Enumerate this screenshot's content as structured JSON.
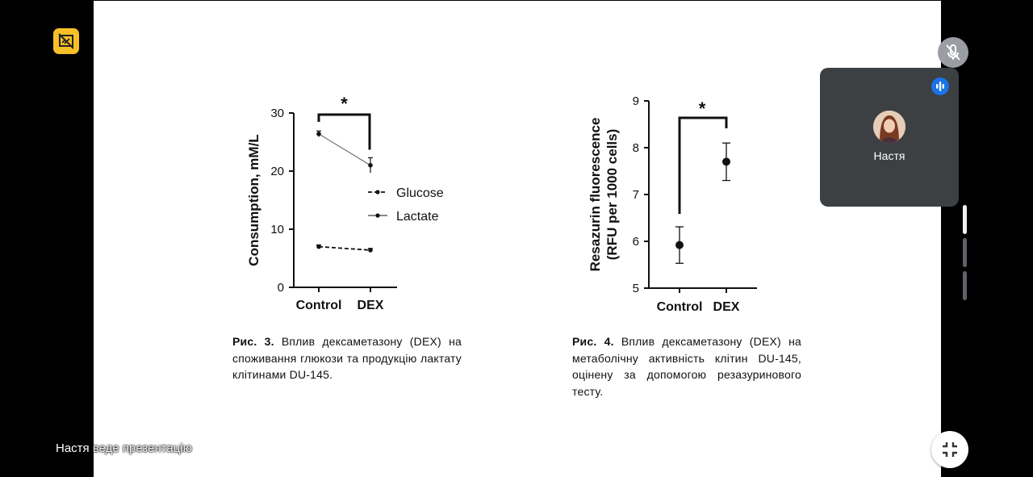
{
  "slide": {
    "fig3": {
      "caption_label": "Рис. 3.",
      "caption_text": "Вплив дексаметазону (DEX) на споживання глюкози та продукцію лактату клітинами DU-145."
    },
    "fig4": {
      "caption_label": "Рис. 4.",
      "caption_text": "Вплив дексаметазону (DEX) на метаболічну активність клітин DU-145, оцінену за допомогою резазуринового тесту."
    }
  },
  "chart_data": [
    {
      "type": "line",
      "categories": [
        "Control",
        "DEX"
      ],
      "ylabel": "Consumption, mM/L",
      "ylim": [
        0,
        30
      ],
      "yticks": [
        "0",
        "10",
        "20",
        "30"
      ],
      "series": [
        {
          "name": "Glucose",
          "values": [
            7.0,
            6.4
          ],
          "errors": [
            0.3,
            0.3
          ],
          "style": "dashed"
        },
        {
          "name": "Lactate",
          "values": [
            26.4,
            21.0
          ],
          "errors": [
            0.5,
            1.3
          ],
          "style": "solid"
        }
      ],
      "significance": "*",
      "legend": "right"
    },
    {
      "type": "scatter",
      "categories": [
        "Control",
        "DEX"
      ],
      "ylabel": [
        "Resazurin fluorescence",
        "(RFU per 1000 cells)"
      ],
      "ylim": [
        5,
        9
      ],
      "yticks": [
        "5",
        "6",
        "7",
        "8",
        "9"
      ],
      "values": [
        5.92,
        7.7
      ],
      "errors": [
        0.39,
        0.4
      ],
      "significance": "*"
    }
  ],
  "participant": {
    "name": "Настя"
  },
  "status": {
    "presenter": "Настя",
    "presenting_text": "веде презентацію"
  },
  "colors": {
    "tile_bg": "#3c4043",
    "badge": "#1a73e8",
    "doc_icon": "#f6c026"
  },
  "icons": {
    "doc": "presentation-off-icon",
    "mic": "mic-off-icon",
    "speaking": "audio-bars-icon",
    "exit": "exit-fullscreen-icon"
  }
}
